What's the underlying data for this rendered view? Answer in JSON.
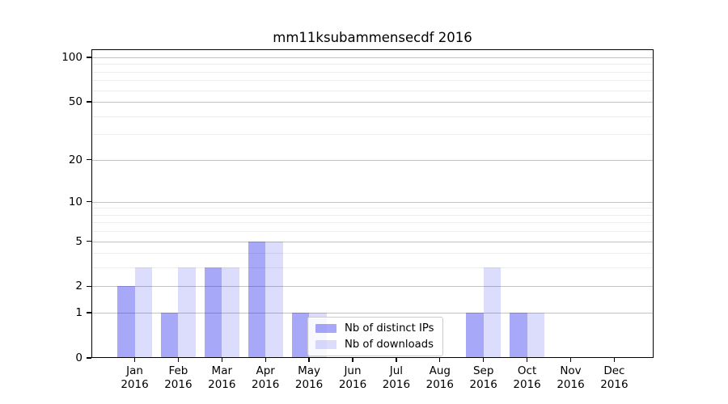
{
  "chart_data": {
    "type": "bar",
    "title": "mm11ksubammensecdf 2016",
    "categories": [
      "Jan 2016",
      "Feb 2016",
      "Mar 2016",
      "Apr 2016",
      "May 2016",
      "Jun 2016",
      "Jul 2016",
      "Aug 2016",
      "Sep 2016",
      "Oct 2016",
      "Nov 2016",
      "Dec 2016"
    ],
    "series": [
      {
        "name": "Nb of distinct IPs",
        "color": "rgba(20,20,235,0.37)",
        "values": [
          2,
          1,
          3,
          5,
          1,
          0,
          0,
          0,
          1,
          1,
          0,
          0
        ]
      },
      {
        "name": "Nb of downloads",
        "color": "rgba(20,20,235,0.15)",
        "values": [
          3,
          3,
          3,
          5,
          1,
          0,
          0,
          0,
          3,
          1,
          0,
          0
        ]
      }
    ],
    "xlabel": "",
    "ylabel": "",
    "yscale": "log1p",
    "ylim": [
      0,
      112
    ],
    "yticks": [
      0,
      1,
      2,
      5,
      10,
      20,
      50,
      100
    ],
    "yticks_minor": [
      3,
      4,
      6,
      7,
      8,
      9,
      30,
      40,
      60,
      70,
      80,
      90
    ],
    "grid": true,
    "legend_position": "lower-center"
  }
}
